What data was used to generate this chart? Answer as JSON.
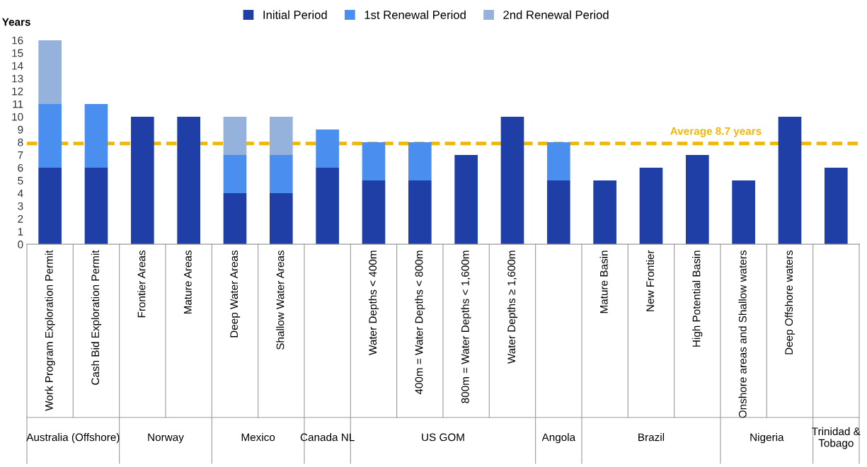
{
  "chart_data": {
    "type": "bar",
    "stacked": true,
    "ylabel": "Years",
    "legend": "top",
    "grid": false,
    "categories": [
      "Work Program Exploration Permit",
      "Cash Bid Exploration Permit",
      "Frontier Areas",
      "Mature Areas",
      "Deep Water Areas",
      "Shallow Water Areas",
      null,
      "Water Depths < 400m",
      "400m = Water Depths < 800m",
      "800m = Water Depths < 1,600m",
      "Water Depths ≥ 1,600m",
      null,
      "Mature Basin",
      "New Frontier",
      "High Potential Basin",
      "Onshore areas and Shallow waters",
      "Deep Offshore waters",
      null
    ],
    "series": [
      {
        "name": "Initial Period",
        "color": "#1f3fa6",
        "values": [
          6,
          6,
          10,
          10,
          4,
          4,
          6,
          5,
          5,
          7,
          10,
          5,
          5,
          6,
          7,
          5,
          10,
          6
        ]
      },
      {
        "name": "1st Renewal Period",
        "color": "#4a8ff0",
        "values": [
          5,
          5,
          0,
          0,
          3,
          3,
          3,
          3,
          3,
          0,
          0,
          3,
          0,
          0,
          0,
          0,
          0,
          0
        ]
      },
      {
        "name": "2nd Renewal Period",
        "color": "#94b2dc",
        "values": [
          5,
          0,
          0,
          0,
          3,
          3,
          0,
          0,
          0,
          0,
          0,
          0,
          0,
          0,
          0,
          0,
          0,
          0
        ]
      }
    ],
    "ylim": [
      0,
      16
    ],
    "yticks": [
      0,
      1,
      2,
      3,
      4,
      5,
      6,
      7,
      8,
      9,
      10,
      11,
      12,
      13,
      14,
      15,
      16
    ],
    "ref_lines": [
      {
        "axis": "y",
        "value": 7.9,
        "label": "Average 8.7 years",
        "color": "#f2b705",
        "line_style": "dashed"
      }
    ],
    "annotations": [
      "Australia (Offshore)",
      "Norway",
      "Mexico",
      "Canada NL",
      "US GOM",
      "Angola",
      "Brazil",
      "Nigeria",
      "Trinidad & Tobago"
    ]
  }
}
